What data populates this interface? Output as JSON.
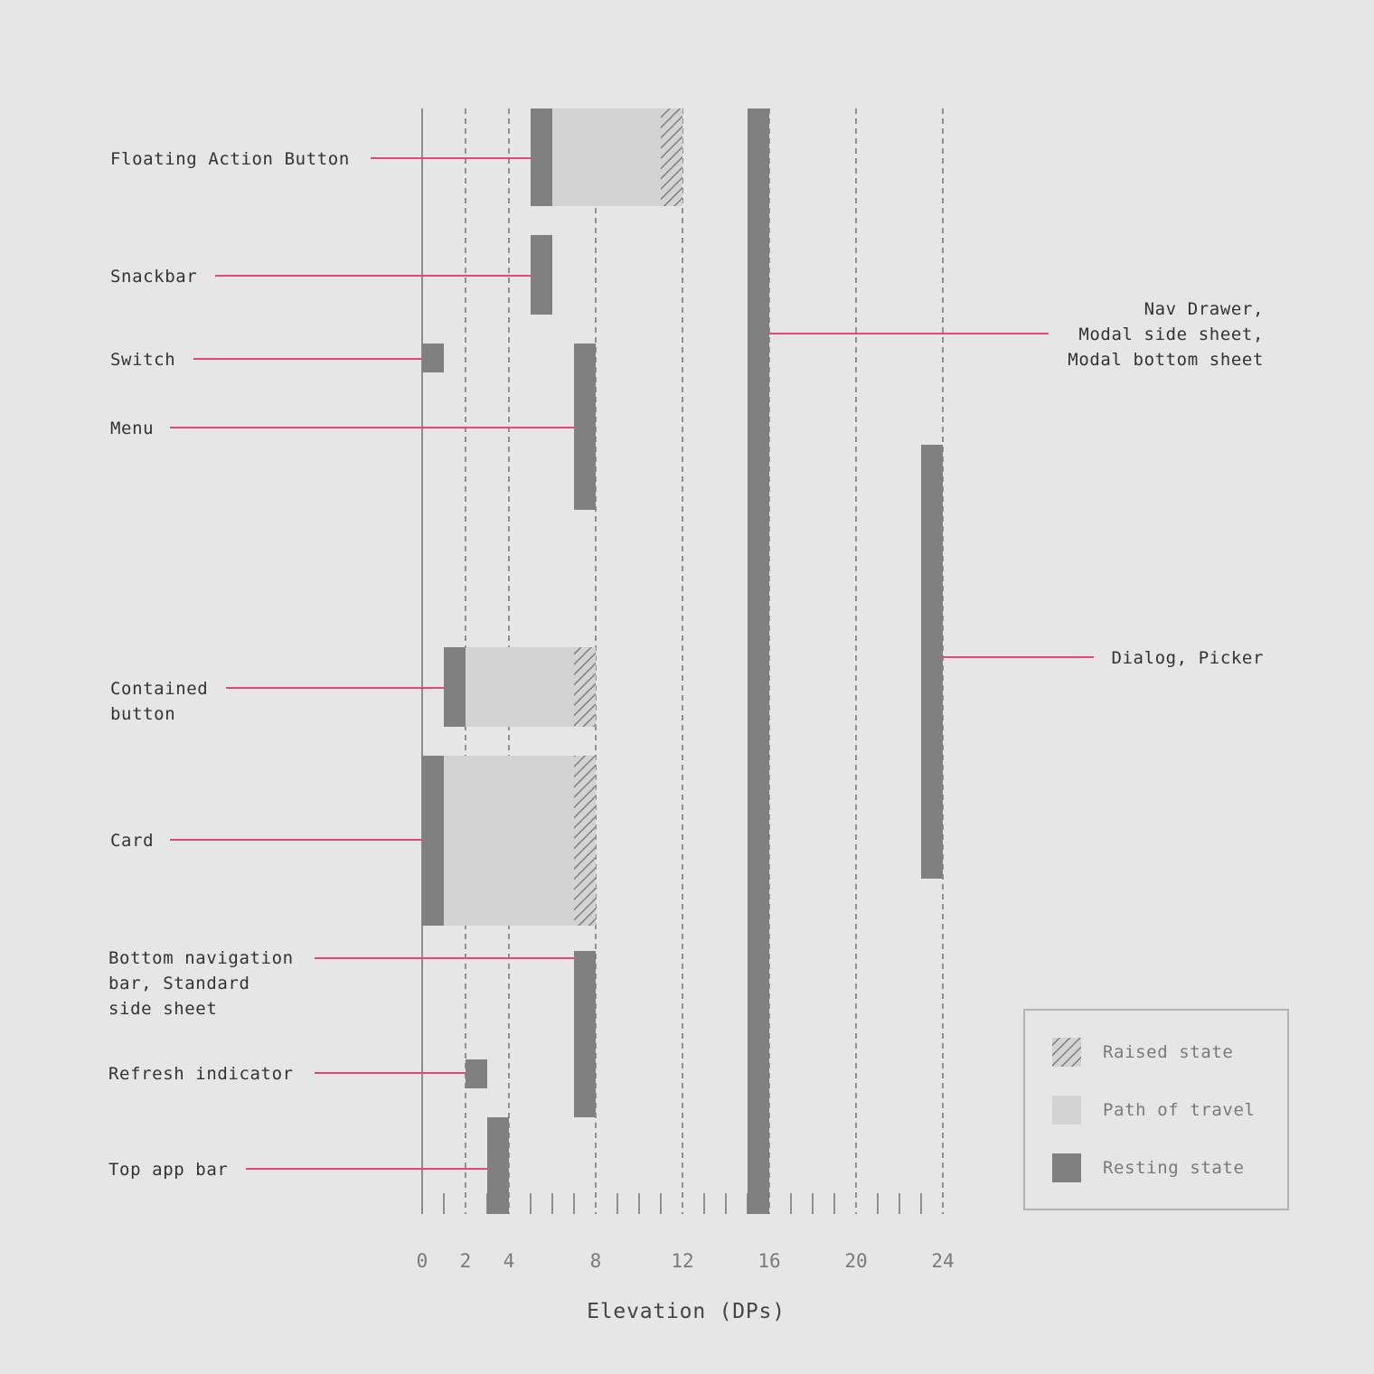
{
  "chart_data": {
    "type": "bar",
    "xlabel": "Elevation (DPs)",
    "xlim": [
      0,
      24
    ],
    "x_ticks": [
      0,
      2,
      4,
      8,
      12,
      16,
      20,
      24
    ],
    "gridlines_at": [
      2,
      4,
      8,
      12,
      16,
      20,
      24
    ],
    "legend_placement": "bottom-right",
    "legend": [
      {
        "key": "raised",
        "label": "Raised state"
      },
      {
        "key": "path",
        "label": "Path of travel"
      },
      {
        "key": "resting",
        "label": "Resting state"
      }
    ],
    "colors": {
      "background": "#e6e6e6",
      "resting": "#808080",
      "path": "#d3d3d3",
      "raised_hatch": "#808080",
      "leader": "#e8457a",
      "grid": "#7a7a7a"
    },
    "components": [
      {
        "label": [
          "Floating Action Button"
        ],
        "side": "left",
        "resting": 6,
        "raised": 12
      },
      {
        "label": [
          "Snackbar"
        ],
        "side": "left",
        "resting": 6
      },
      {
        "label": [
          "Switch"
        ],
        "side": "left",
        "resting": 1
      },
      {
        "label": [
          "Menu"
        ],
        "side": "left",
        "resting": 8
      },
      {
        "label": [
          "Contained",
          "button"
        ],
        "side": "left",
        "resting": 2,
        "raised": 8
      },
      {
        "label": [
          "Card"
        ],
        "side": "left",
        "resting": 1,
        "raised": 8
      },
      {
        "label": [
          "Bottom navigation",
          "bar, Standard",
          "side sheet"
        ],
        "side": "left",
        "resting": 8
      },
      {
        "label": [
          "Refresh indicator"
        ],
        "side": "left",
        "resting": 3
      },
      {
        "label": [
          "Top app bar"
        ],
        "side": "left",
        "resting": 4
      },
      {
        "label": [
          "Nav Drawer,",
          "Modal side sheet,",
          "Modal bottom sheet"
        ],
        "side": "right",
        "resting": 16
      },
      {
        "label": [
          "Dialog, Picker"
        ],
        "side": "right",
        "resting": 24
      }
    ]
  }
}
